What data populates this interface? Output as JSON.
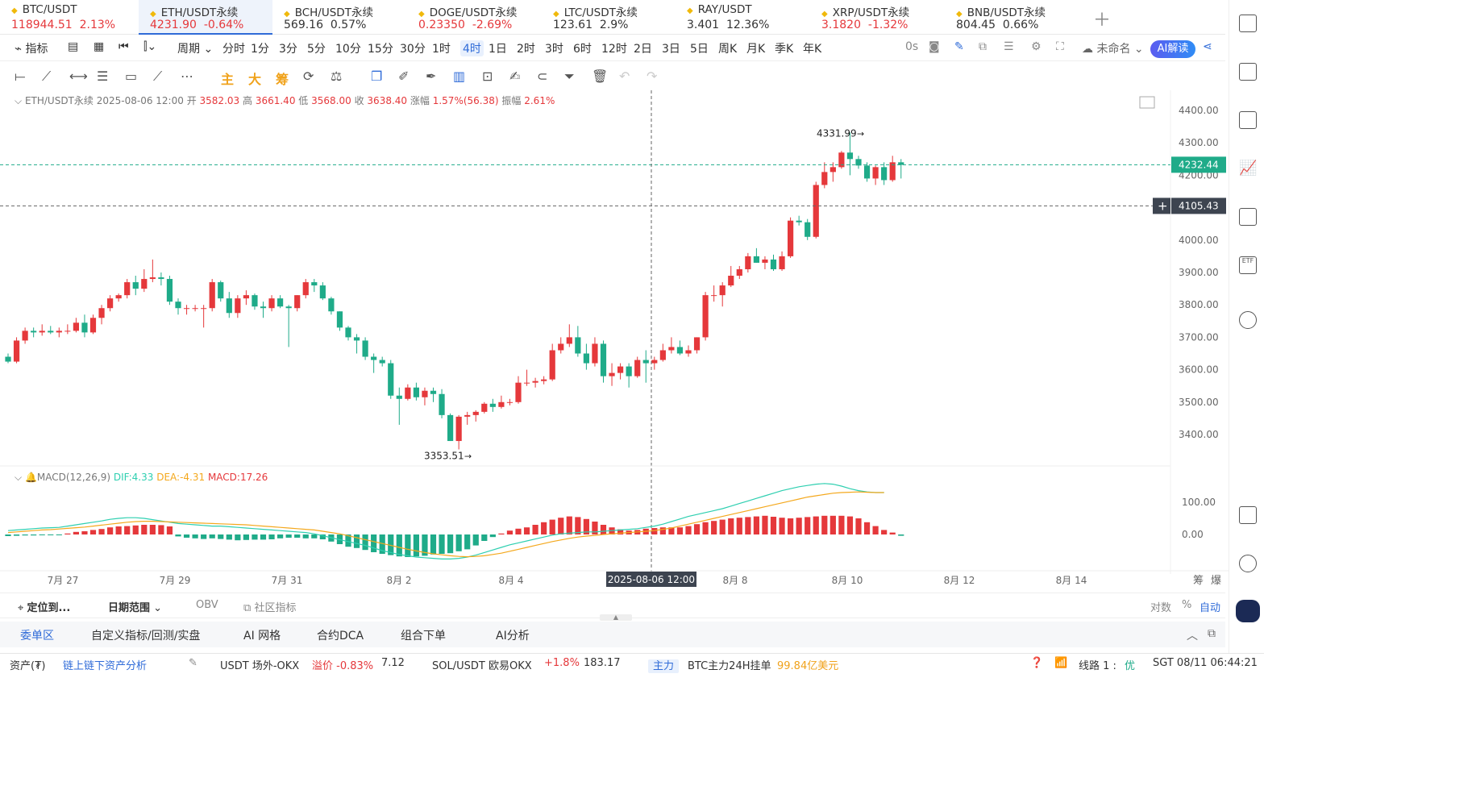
{
  "tickers": [
    {
      "name": "BTC/USDT",
      "price": "118944.51",
      "change": "2.13%",
      "dir": "up"
    },
    {
      "name": "ETH/USDT永续",
      "price": "4231.90",
      "change": "-0.64%",
      "dir": "up",
      "active": true
    },
    {
      "name": "BCH/USDT永续",
      "price": "569.16",
      "change": "0.57%",
      "dir": "flat"
    },
    {
      "name": "DOGE/USDT永续",
      "price": "0.23350",
      "change": "-2.69%",
      "dir": "up"
    },
    {
      "name": "LTC/USDT永续",
      "price": "123.61",
      "change": "2.9%",
      "dir": "flat"
    },
    {
      "name": "RAY/USDT",
      "price": "3.401",
      "change": "12.36%",
      "dir": "flat"
    },
    {
      "name": "XRP/USDT永续",
      "price": "3.1820",
      "change": "-1.32%",
      "dir": "up"
    },
    {
      "name": "BNB/USDT永续",
      "price": "804.45",
      "change": "0.66%",
      "dir": "flat"
    }
  ],
  "toolbar": {
    "indicator": "指标",
    "period": "周期",
    "intervals": [
      "分时",
      "1分",
      "3分",
      "5分",
      "10分",
      "15分",
      "30分",
      "1时",
      "4时",
      "1日",
      "2时",
      "3时",
      "6时",
      "12时",
      "2日",
      "3日",
      "5日",
      "周K",
      "月K",
      "季K",
      "年K"
    ],
    "selected_interval": "4时",
    "countdown": "0s",
    "unnamed": "未命名",
    "ai": "AI解读"
  },
  "drawbar": {
    "main": "主",
    "big": "大",
    "chips": "筹"
  },
  "ohlc": {
    "symbol": "ETH/USDT永续",
    "time": "2025-08-06 12:00",
    "open_l": "开",
    "open": "3582.03",
    "high_l": "高",
    "high": "3661.40",
    "low_l": "低",
    "low": "3568.00",
    "close_l": "收",
    "close": "3638.40",
    "chg_l": "涨幅",
    "chg": "1.57%(56.38)",
    "amp_l": "振幅",
    "amp": "2.61%"
  },
  "price_axis": [
    "4400.00",
    "4300.00",
    "4200.00",
    "4100.00",
    "4000.00",
    "3900.00",
    "3800.00",
    "3700.00",
    "3600.00",
    "3500.00",
    "3400.00"
  ],
  "price_tag": "4232.44",
  "cross_tag": "4105.43",
  "high_label": "4331.99",
  "low_label": "3353.51",
  "macd": {
    "title": "MACD(12,26,9)",
    "dif": "DIF:4.33",
    "dea": "DEA:-4.31",
    "macd": "MACD:17.26"
  },
  "macd_axis": [
    "100.00",
    "0.00"
  ],
  "date_axis": [
    "7月 27",
    "7月 29",
    "7月 31",
    "8月 2",
    "8月 4",
    "8月 8",
    "8月 10",
    "8月 12",
    "8月 14"
  ],
  "date_axis_right": [
    "筹",
    "爆"
  ],
  "cross_date": "2025-08-06 12:00",
  "bottombar": {
    "locate": "定位到...",
    "range": "日期范围",
    "obv": "OBV",
    "community": "社区指标",
    "log": "对数",
    "pct": "%",
    "auto": "自动"
  },
  "panel_tabs": [
    "委单区",
    "自定义指标/回测/实盘",
    "AI 网格",
    "合约DCA",
    "组合下单",
    "AI分析"
  ],
  "status": {
    "assets": "资产(₮)",
    "analysis": "链上链下资产分析",
    "usdt": "USDT 场外-OKX",
    "premium_l": "溢价",
    "premium": "-0.83%",
    "usdt_price": "7.12",
    "sol": "SOL/USDT 欧易OKX",
    "sol_chg": "+1.8%",
    "sol_price": "183.17",
    "main_badge": "主力",
    "btc": "BTC主力24H挂单",
    "btc_val": "99.84亿美元",
    "line": "线路 1 :",
    "line_q": "优",
    "clock": "SGT  08/11 06:44:21"
  },
  "colors": {
    "up": "#e5383b",
    "down": "#1fab89",
    "accent": "#2f6bd8",
    "dif": "#2ecfb0",
    "dea": "#f4a81d"
  },
  "chart_data": {
    "type": "candlestick",
    "interval": "4时",
    "ylim": [
      3300,
      4420
    ],
    "candles": [
      [
        3640,
        3650,
        3620,
        3625
      ],
      [
        3625,
        3700,
        3620,
        3690
      ],
      [
        3690,
        3730,
        3680,
        3720
      ],
      [
        3720,
        3730,
        3700,
        3715
      ],
      [
        3715,
        3740,
        3705,
        3720
      ],
      [
        3720,
        3735,
        3710,
        3715
      ],
      [
        3715,
        3730,
        3700,
        3720
      ],
      [
        3720,
        3740,
        3710,
        3720
      ],
      [
        3720,
        3760,
        3715,
        3745
      ],
      [
        3745,
        3770,
        3700,
        3715
      ],
      [
        3715,
        3770,
        3710,
        3760
      ],
      [
        3760,
        3800,
        3740,
        3790
      ],
      [
        3790,
        3830,
        3780,
        3820
      ],
      [
        3820,
        3835,
        3810,
        3830
      ],
      [
        3830,
        3880,
        3820,
        3870
      ],
      [
        3870,
        3890,
        3830,
        3850
      ],
      [
        3850,
        3910,
        3840,
        3880
      ],
      [
        3880,
        3940,
        3870,
        3885
      ],
      [
        3885,
        3900,
        3860,
        3880
      ],
      [
        3880,
        3890,
        3800,
        3810
      ],
      [
        3810,
        3820,
        3770,
        3790
      ],
      [
        3790,
        3800,
        3770,
        3790
      ],
      [
        3790,
        3800,
        3780,
        3790
      ],
      [
        3790,
        3800,
        3730,
        3790
      ],
      [
        3790,
        3880,
        3780,
        3870
      ],
      [
        3870,
        3875,
        3810,
        3820
      ],
      [
        3820,
        3840,
        3760,
        3775
      ],
      [
        3775,
        3830,
        3760,
        3820
      ],
      [
        3820,
        3845,
        3800,
        3830
      ],
      [
        3830,
        3835,
        3785,
        3795
      ],
      [
        3795,
        3810,
        3760,
        3790
      ],
      [
        3790,
        3830,
        3780,
        3820
      ],
      [
        3820,
        3830,
        3790,
        3795
      ],
      [
        3795,
        3800,
        3670,
        3790
      ],
      [
        3790,
        3830,
        3780,
        3830
      ],
      [
        3830,
        3880,
        3820,
        3870
      ],
      [
        3870,
        3880,
        3840,
        3860
      ],
      [
        3860,
        3870,
        3815,
        3820
      ],
      [
        3820,
        3825,
        3770,
        3780
      ],
      [
        3780,
        3780,
        3720,
        3730
      ],
      [
        3730,
        3735,
        3690,
        3700
      ],
      [
        3700,
        3710,
        3650,
        3690
      ],
      [
        3690,
        3700,
        3630,
        3640
      ],
      [
        3640,
        3650,
        3590,
        3630
      ],
      [
        3630,
        3640,
        3610,
        3620
      ],
      [
        3620,
        3630,
        3510,
        3520
      ],
      [
        3520,
        3545,
        3430,
        3510
      ],
      [
        3510,
        3555,
        3505,
        3545
      ],
      [
        3545,
        3560,
        3505,
        3515
      ],
      [
        3515,
        3545,
        3490,
        3535
      ],
      [
        3535,
        3545,
        3500,
        3525
      ],
      [
        3525,
        3540,
        3450,
        3460
      ],
      [
        3460,
        3465,
        3380,
        3380
      ],
      [
        3380,
        3460,
        3354,
        3455
      ],
      [
        3455,
        3470,
        3430,
        3460
      ],
      [
        3460,
        3475,
        3440,
        3470
      ],
      [
        3470,
        3500,
        3465,
        3495
      ],
      [
        3495,
        3510,
        3470,
        3485
      ],
      [
        3485,
        3520,
        3480,
        3500
      ],
      [
        3500,
        3510,
        3490,
        3500
      ],
      [
        3500,
        3580,
        3495,
        3560
      ],
      [
        3560,
        3600,
        3550,
        3560
      ],
      [
        3560,
        3575,
        3545,
        3565
      ],
      [
        3565,
        3580,
        3555,
        3570
      ],
      [
        3570,
        3680,
        3565,
        3660
      ],
      [
        3660,
        3700,
        3650,
        3680
      ],
      [
        3680,
        3740,
        3670,
        3700
      ],
      [
        3700,
        3735,
        3640,
        3650
      ],
      [
        3650,
        3680,
        3600,
        3620
      ],
      [
        3620,
        3700,
        3610,
        3680
      ],
      [
        3680,
        3690,
        3560,
        3580
      ],
      [
        3580,
        3620,
        3550,
        3590
      ],
      [
        3590,
        3620,
        3570,
        3610
      ],
      [
        3610,
        3620,
        3545,
        3580
      ],
      [
        3580,
        3640,
        3575,
        3630
      ],
      [
        3630,
        3660,
        3560,
        3620
      ],
      [
        3620,
        3640,
        3600,
        3630
      ],
      [
        3630,
        3680,
        3625,
        3660
      ],
      [
        3660,
        3700,
        3650,
        3670
      ],
      [
        3670,
        3690,
        3645,
        3650
      ],
      [
        3650,
        3675,
        3640,
        3660
      ],
      [
        3660,
        3700,
        3650,
        3700
      ],
      [
        3700,
        3840,
        3690,
        3830
      ],
      [
        3830,
        3860,
        3810,
        3830
      ],
      [
        3830,
        3870,
        3795,
        3860
      ],
      [
        3860,
        3920,
        3855,
        3890
      ],
      [
        3890,
        3920,
        3880,
        3910
      ],
      [
        3910,
        3960,
        3900,
        3950
      ],
      [
        3950,
        3975,
        3930,
        3930
      ],
      [
        3930,
        3950,
        3910,
        3940
      ],
      [
        3940,
        3955,
        3905,
        3910
      ],
      [
        3910,
        3965,
        3905,
        3950
      ],
      [
        3950,
        4070,
        3945,
        4060
      ],
      [
        4060,
        4075,
        4045,
        4055
      ],
      [
        4055,
        4065,
        4000,
        4010
      ],
      [
        4010,
        4180,
        4005,
        4170
      ],
      [
        4170,
        4240,
        4160,
        4210
      ],
      [
        4210,
        4240,
        4180,
        4225
      ],
      [
        4225,
        4275,
        4220,
        4270
      ],
      [
        4270,
        4332,
        4200,
        4250
      ],
      [
        4250,
        4260,
        4220,
        4230
      ],
      [
        4230,
        4240,
        4180,
        4190
      ],
      [
        4190,
        4230,
        4170,
        4225
      ],
      [
        4225,
        4240,
        4170,
        4185
      ],
      [
        4185,
        4260,
        4180,
        4240
      ],
      [
        4240,
        4250,
        4190,
        4232
      ]
    ],
    "macd_range": [
      -80,
      180
    ],
    "hist": [
      -5,
      -4,
      -3,
      -3,
      -2,
      -2,
      -2,
      3,
      8,
      10,
      14,
      17,
      22,
      25,
      26,
      28,
      30,
      30,
      29,
      25,
      -6,
      -10,
      -12,
      -14,
      -12,
      -14,
      -16,
      -18,
      -17,
      -16,
      -16,
      -15,
      -12,
      -10,
      -10,
      -12,
      -12,
      -15,
      -22,
      -30,
      -38,
      -42,
      -48,
      -55,
      -60,
      -64,
      -68,
      -70,
      -68,
      -66,
      -62,
      -60,
      -58,
      -52,
      -46,
      -34,
      -20,
      -8,
      3,
      12,
      18,
      22,
      30,
      38,
      46,
      52,
      56,
      54,
      48,
      40,
      30,
      22,
      16,
      12,
      14,
      18,
      20,
      22,
      22,
      22,
      26,
      32,
      38,
      42,
      46,
      50,
      52,
      54,
      56,
      58,
      55,
      52,
      50,
      52,
      54,
      56,
      58,
      58,
      58,
      56,
      50,
      38,
      26,
      14,
      6,
      -4
    ],
    "dif": [
      12,
      14,
      16,
      18,
      20,
      21,
      22,
      26,
      30,
      34,
      38,
      42,
      47,
      50,
      52,
      52,
      50,
      46,
      42,
      38,
      34,
      32,
      30,
      28,
      26,
      26,
      24,
      22,
      20,
      18,
      16,
      14,
      12,
      10,
      8,
      6,
      2,
      -4,
      -10,
      -16,
      -22,
      -28,
      -34,
      -42,
      -50,
      -56,
      -62,
      -66,
      -70,
      -72,
      -74,
      -76,
      -76,
      -74,
      -70,
      -64,
      -56,
      -48,
      -40,
      -32,
      -26,
      -20,
      -14,
      -8,
      -2,
      2,
      4,
      6,
      8,
      8,
      10,
      12,
      14,
      16,
      18,
      22,
      26,
      32,
      40,
      48,
      56,
      62,
      68,
      74,
      80,
      88,
      96,
      104,
      112,
      120,
      128,
      136,
      142,
      148,
      152,
      156,
      158,
      156,
      150,
      142,
      136,
      132,
      130,
      130
    ],
    "dea": [
      6,
      8,
      10,
      12,
      14,
      15,
      17,
      19,
      21,
      23,
      26,
      29,
      32,
      35,
      38,
      40,
      41,
      41,
      40,
      39,
      38,
      37,
      36,
      35,
      34,
      33,
      32,
      31,
      30,
      28,
      26,
      24,
      22,
      20,
      18,
      16,
      14,
      10,
      6,
      2,
      -4,
      -10,
      -16,
      -22,
      -28,
      -34,
      -40,
      -46,
      -51,
      -56,
      -60,
      -63,
      -66,
      -68,
      -69,
      -68,
      -66,
      -62,
      -58,
      -52,
      -46,
      -40,
      -34,
      -28,
      -22,
      -17,
      -12,
      -8,
      -5,
      -3,
      0,
      2,
      4,
      6,
      8,
      10,
      12,
      16,
      20,
      26,
      32,
      38,
      44,
      50,
      56,
      62,
      68,
      74,
      80,
      86,
      92,
      98,
      104,
      110,
      116,
      120,
      124,
      128,
      130,
      131,
      132,
      131,
      130,
      130
    ]
  }
}
